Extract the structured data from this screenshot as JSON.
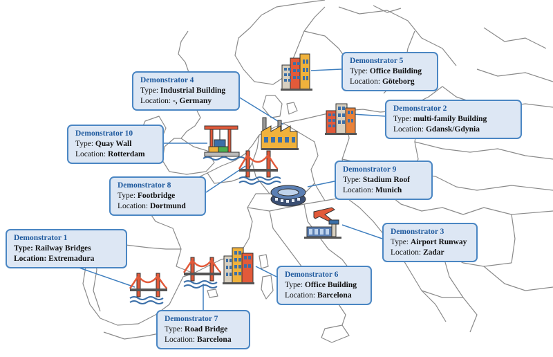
{
  "map": {
    "region": "Europe",
    "colors": {
      "border": "#8a8a8a",
      "leader": "#3f7fbf",
      "card_bg": "#dde7f4",
      "card_border": "#4a86c3",
      "title": "#1f5a9e"
    }
  },
  "demonstrators": [
    {
      "title": "Demonstrator 1",
      "type_label": "Type:",
      "type": "Railway Bridges",
      "location_label": "Location:",
      "location": "Extremadura",
      "icon": "bridge-icon"
    },
    {
      "title": "Demonstrator 2",
      "type_label": "Type:",
      "type": "multi-family Building",
      "location_label": "Location:",
      "location": "Gdansk/Gdynia",
      "icon": "office-building-icon"
    },
    {
      "title": "Demonstrator 3",
      "type_label": "Type:",
      "type": "Airport Runway",
      "location_label": "Location:",
      "location": "Zadar",
      "icon": "airport-icon"
    },
    {
      "title": "Demonstrator 4",
      "type_label": "Type:",
      "type": "Industrial Building",
      "location_label": "Location:",
      "location": "-, Germany",
      "icon": "factory-icon"
    },
    {
      "title": "Demonstrator 5",
      "type_label": "Type:",
      "type": "Office Building",
      "location_label": "Location:",
      "location": "Göteborg",
      "icon": "office-building-icon"
    },
    {
      "title": "Demonstrator 6",
      "type_label": "Type:",
      "type": "Office Building",
      "location_label": "Location:",
      "location": "Barcelona",
      "icon": "office-building-icon"
    },
    {
      "title": "Demonstrator 7",
      "type_label": "Type:",
      "type": "Road Bridge",
      "location_label": "Location:",
      "location": "Barcelona",
      "icon": "bridge-icon"
    },
    {
      "title": "Demonstrator 8",
      "type_label": "Type:",
      "type": "Footbridge",
      "location_label": "Location:",
      "location": "Dortmund",
      "icon": "bridge-icon"
    },
    {
      "title": "Demonstrator 9",
      "type_label": "Type:",
      "type": "Stadium Roof",
      "location_label": "Location:",
      "location": "Munich",
      "icon": "stadium-icon"
    },
    {
      "title": "Demonstrator 10",
      "type_label": "Type:",
      "type": "Quay Wall",
      "location_label": "Location:",
      "location": "Rotterdam",
      "icon": "port-crane-icon"
    }
  ]
}
